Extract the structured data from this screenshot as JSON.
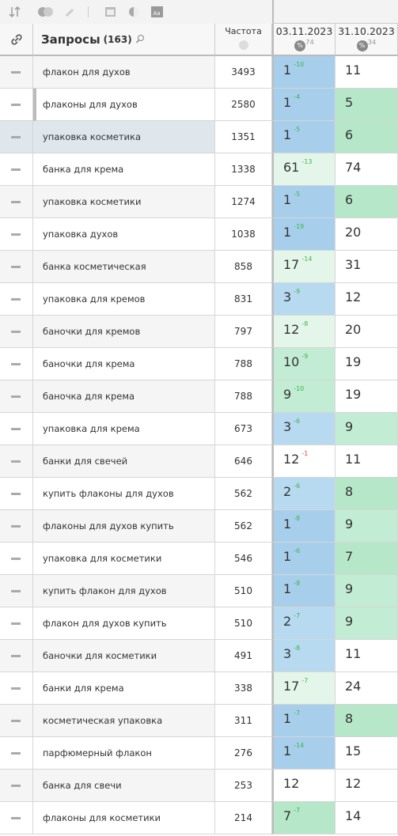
{
  "header": {
    "title": "Запросы",
    "count": "(163)",
    "freq_label": "Частота",
    "date1": "03.11.2023",
    "date1_sub": 74,
    "date2": "31.10.2023",
    "date2_sub": 34
  },
  "rows": [
    {
      "query": "флакон для духов",
      "freq": 3493,
      "pos1": 1,
      "delta": "-10",
      "delta_color": "#3cb54a",
      "bg1": "#a7cfec",
      "pos2": 11,
      "bg2": "#ffffff"
    },
    {
      "query": "флаконы для духов",
      "freq": 2580,
      "pos1": 1,
      "delta": "-4",
      "delta_color": "#3cb54a",
      "bg1": "#a7cfec",
      "pos2": 5,
      "bg2": "#b5e7c8"
    },
    {
      "query": "упаковка косметика",
      "freq": 1351,
      "pos1": 1,
      "delta": "-5",
      "delta_color": "#3cb54a",
      "bg1": "#a7cfec",
      "pos2": 6,
      "bg2": "#b5e7c8"
    },
    {
      "query": "банка для крема",
      "freq": 1338,
      "pos1": 61,
      "delta": "-13",
      "delta_color": "#3cb54a",
      "bg1": "#e4f6ea",
      "pos2": 74,
      "bg2": "#ffffff"
    },
    {
      "query": "упаковка косметики",
      "freq": 1274,
      "pos1": 1,
      "delta": "-5",
      "delta_color": "#3cb54a",
      "bg1": "#a7cfec",
      "pos2": 6,
      "bg2": "#b5e7c8"
    },
    {
      "query": "упаковка духов",
      "freq": 1038,
      "pos1": 1,
      "delta": "-19",
      "delta_color": "#3cb54a",
      "bg1": "#a7cfec",
      "pos2": 20,
      "bg2": "#ffffff"
    },
    {
      "query": "банка косметическая",
      "freq": 858,
      "pos1": 17,
      "delta": "-14",
      "delta_color": "#3cb54a",
      "bg1": "#e4f6ea",
      "pos2": 31,
      "bg2": "#ffffff"
    },
    {
      "query": "упаковка для кремов",
      "freq": 831,
      "pos1": 3,
      "delta": "-9",
      "delta_color": "#3cb54a",
      "bg1": "#b7daf1",
      "pos2": 12,
      "bg2": "#ffffff"
    },
    {
      "query": "баночки для кремов",
      "freq": 797,
      "pos1": 12,
      "delta": "-8",
      "delta_color": "#3cb54a",
      "bg1": "#e4f6ea",
      "pos2": 20,
      "bg2": "#ffffff"
    },
    {
      "query": "баночки для крема",
      "freq": 788,
      "pos1": 10,
      "delta": "-9",
      "delta_color": "#3cb54a",
      "bg1": "#c2ecd3",
      "pos2": 19,
      "bg2": "#ffffff"
    },
    {
      "query": "баночка для крема",
      "freq": 788,
      "pos1": 9,
      "delta": "-10",
      "delta_color": "#3cb54a",
      "bg1": "#c2ecd3",
      "pos2": 19,
      "bg2": "#ffffff"
    },
    {
      "query": "упаковка для крема",
      "freq": 673,
      "pos1": 3,
      "delta": "-6",
      "delta_color": "#3cb54a",
      "bg1": "#b7daf1",
      "pos2": 9,
      "bg2": "#c2ecd3"
    },
    {
      "query": "банки для свечей",
      "freq": 646,
      "pos1": 12,
      "delta": "-1",
      "delta_color": "#e53935",
      "bg1": "#ffffff",
      "pos2": 11,
      "bg2": "#ffffff"
    },
    {
      "query": "купить флаконы для духов",
      "freq": 562,
      "pos1": 2,
      "delta": "-6",
      "delta_color": "#3cb54a",
      "bg1": "#b7daf1",
      "pos2": 8,
      "bg2": "#b5e7c8"
    },
    {
      "query": "флаконы для духов купить",
      "freq": 562,
      "pos1": 1,
      "delta": "-8",
      "delta_color": "#3cb54a",
      "bg1": "#a7cfec",
      "pos2": 9,
      "bg2": "#c2ecd3"
    },
    {
      "query": "упаковка для косметики",
      "freq": 546,
      "pos1": 1,
      "delta": "-6",
      "delta_color": "#3cb54a",
      "bg1": "#a7cfec",
      "pos2": 7,
      "bg2": "#b5e7c8"
    },
    {
      "query": "купить флакон для духов",
      "freq": 510,
      "pos1": 1,
      "delta": "-8",
      "delta_color": "#3cb54a",
      "bg1": "#a7cfec",
      "pos2": 9,
      "bg2": "#c2ecd3"
    },
    {
      "query": "флакон для духов купить",
      "freq": 510,
      "pos1": 2,
      "delta": "-7",
      "delta_color": "#3cb54a",
      "bg1": "#b7daf1",
      "pos2": 9,
      "bg2": "#c2ecd3"
    },
    {
      "query": "баночки для косметики",
      "freq": 491,
      "pos1": 3,
      "delta": "-8",
      "delta_color": "#3cb54a",
      "bg1": "#b7daf1",
      "pos2": 11,
      "bg2": "#ffffff"
    },
    {
      "query": "банки для крема",
      "freq": 338,
      "pos1": 17,
      "delta": "-7",
      "delta_color": "#3cb54a",
      "bg1": "#e4f6ea",
      "pos2": 24,
      "bg2": "#ffffff"
    },
    {
      "query": "косметическая упаковка",
      "freq": 311,
      "pos1": 1,
      "delta": "-7",
      "delta_color": "#3cb54a",
      "bg1": "#a7cfec",
      "pos2": 8,
      "bg2": "#b5e7c8"
    },
    {
      "query": "парфюмерный флакон",
      "freq": 276,
      "pos1": 1,
      "delta": "-14",
      "delta_color": "#3cb54a",
      "bg1": "#a7cfec",
      "pos2": 15,
      "bg2": "#ffffff"
    },
    {
      "query": "банка для свечи",
      "freq": 253,
      "pos1": 12,
      "bg1": "#ffffff",
      "pos2": 12,
      "bg2": "#ffffff"
    },
    {
      "query": "флаконы для косметики",
      "freq": 214,
      "pos1": 7,
      "delta": "-7",
      "delta_color": "#3cb54a",
      "bg1": "#b5e7c8",
      "pos2": 14,
      "bg2": "#ffffff"
    }
  ]
}
